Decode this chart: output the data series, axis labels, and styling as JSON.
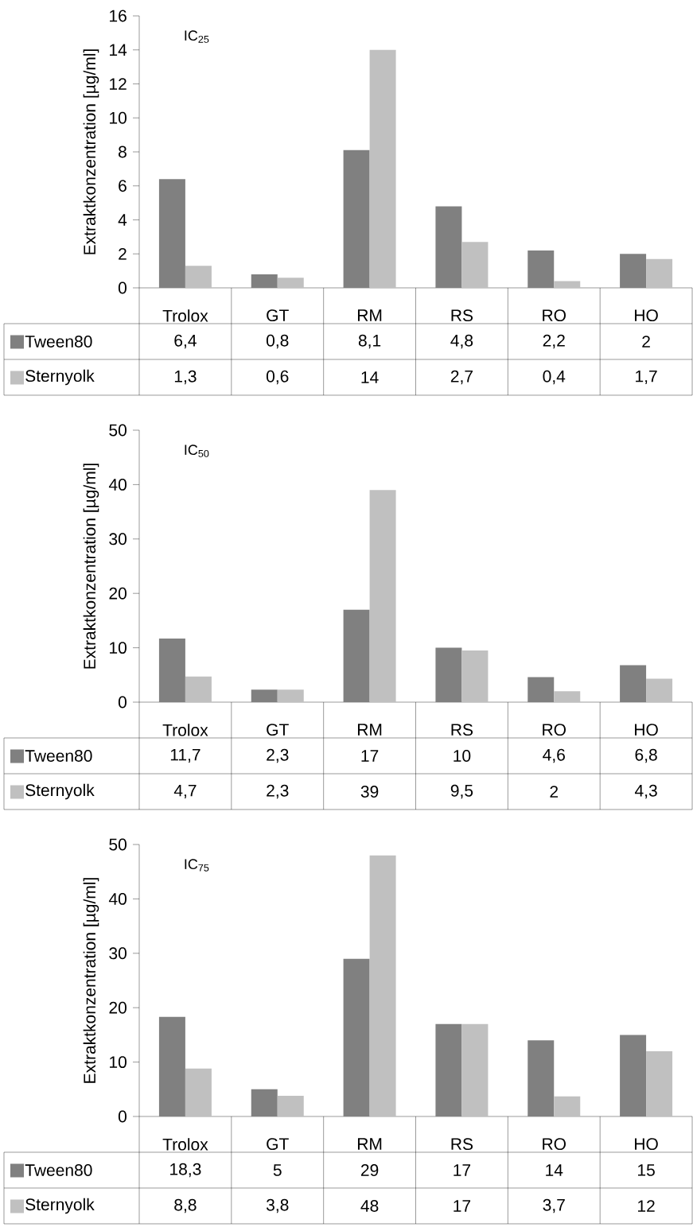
{
  "chart_data": [
    {
      "type": "bar",
      "title": "IC$_{25}$",
      "ylabel": "Extraktkonzentration [µg/ml]",
      "categories": [
        "Trolox",
        "GT",
        "RM",
        "RS",
        "RO",
        "HO"
      ],
      "ylim": [
        0,
        16
      ],
      "yticks": [
        0,
        2,
        4,
        6,
        8,
        10,
        12,
        14,
        16
      ],
      "legend": "bottom",
      "series": [
        {
          "name": "Tween80",
          "color": "#808080",
          "values": [
            6.4,
            0.8,
            8.1,
            4.8,
            2.2,
            2
          ],
          "value_labels": [
            "6,4",
            "0,8",
            "8,1",
            "4,8",
            "2,2",
            "2"
          ]
        },
        {
          "name": "Sternyolk",
          "color": "#c0c0c0",
          "values": [
            1.3,
            0.6,
            14,
            2.7,
            0.4,
            1.7
          ],
          "value_labels": [
            "1,3",
            "0,6",
            "14",
            "2,7",
            "0,4",
            "1,7"
          ]
        }
      ]
    },
    {
      "type": "bar",
      "title": "IC$_{50}$",
      "ylabel": "Extraktkonzentration [µg/ml]",
      "categories": [
        "Trolox",
        "GT",
        "RM",
        "RS",
        "RO",
        "HO"
      ],
      "ylim": [
        0,
        50
      ],
      "yticks": [
        0,
        10,
        20,
        30,
        40,
        50
      ],
      "legend": "bottom",
      "series": [
        {
          "name": "Tween80",
          "color": "#808080",
          "values": [
            11.7,
            2.3,
            17,
            10,
            4.6,
            6.8
          ],
          "value_labels": [
            "11,7",
            "2,3",
            "17",
            "10",
            "4,6",
            "6,8"
          ]
        },
        {
          "name": "Sternyolk",
          "color": "#c0c0c0",
          "values": [
            4.7,
            2.3,
            39,
            9.5,
            2,
            4.3
          ],
          "value_labels": [
            "4,7",
            "2,3",
            "39",
            "9,5",
            "2",
            "4,3"
          ]
        }
      ]
    },
    {
      "type": "bar",
      "title": "IC$_{75}$",
      "ylabel": "Extraktkonzentration [µg/ml]",
      "categories": [
        "Trolox",
        "GT",
        "RM",
        "RS",
        "RO",
        "HO"
      ],
      "ylim": [
        0,
        50
      ],
      "yticks": [
        0,
        10,
        20,
        30,
        40,
        50
      ],
      "legend": "bottom",
      "series": [
        {
          "name": "Tween80",
          "color": "#808080",
          "values": [
            18.3,
            5,
            29,
            17,
            14,
            15
          ],
          "value_labels": [
            "18,3",
            "5",
            "29",
            "17",
            "14",
            "15"
          ]
        },
        {
          "name": "Sternyolk",
          "color": "#c0c0c0",
          "values": [
            8.8,
            3.8,
            48,
            17,
            3.7,
            12
          ],
          "value_labels": [
            "8,8",
            "3,8",
            "48",
            "17",
            "3,7",
            "12"
          ]
        }
      ]
    }
  ]
}
